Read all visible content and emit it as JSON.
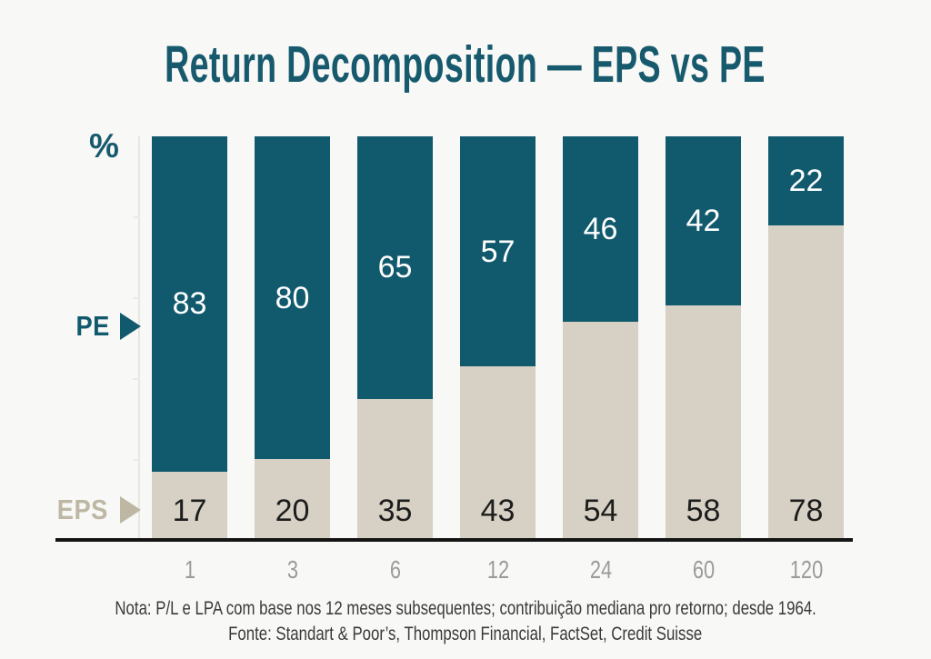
{
  "title": "Return Decomposition — EPS vs PE",
  "colors": {
    "background": "#f8f8f6",
    "title": "#175a6e",
    "pe": "#115a6d",
    "eps": "#d6d1c4",
    "eps_label_text": "#bdb7a3",
    "tick_label": "#9b9b9b",
    "note_text": "#3a3a3a",
    "axis": "#151515"
  },
  "axis_labels": {
    "unit": "%",
    "pe": "PE",
    "eps": "EPS"
  },
  "chart_data": {
    "type": "bar",
    "stacked": true,
    "title": "Return Decomposition — EPS vs PE",
    "categories": [
      "1",
      "3",
      "6",
      "12",
      "24",
      "60",
      "120"
    ],
    "series": [
      {
        "name": "PE",
        "color": "#115a6d",
        "values": [
          83,
          80,
          65,
          57,
          46,
          42,
          22
        ]
      },
      {
        "name": "EPS",
        "color": "#d6d1c4",
        "values": [
          17,
          20,
          35,
          43,
          54,
          58,
          78
        ]
      }
    ],
    "ylabel": "%",
    "ylim": [
      0,
      100
    ],
    "grid": false,
    "legend_position": "left-pointers"
  },
  "footer": {
    "note": "Nota: P/L e LPA com base nos 12 meses subsequentes; contribuição mediana pro retorno; desde 1964.",
    "source": "Fonte: Standart & Poor’s, Thompson Financial, FactSet, Credit Suisse"
  }
}
